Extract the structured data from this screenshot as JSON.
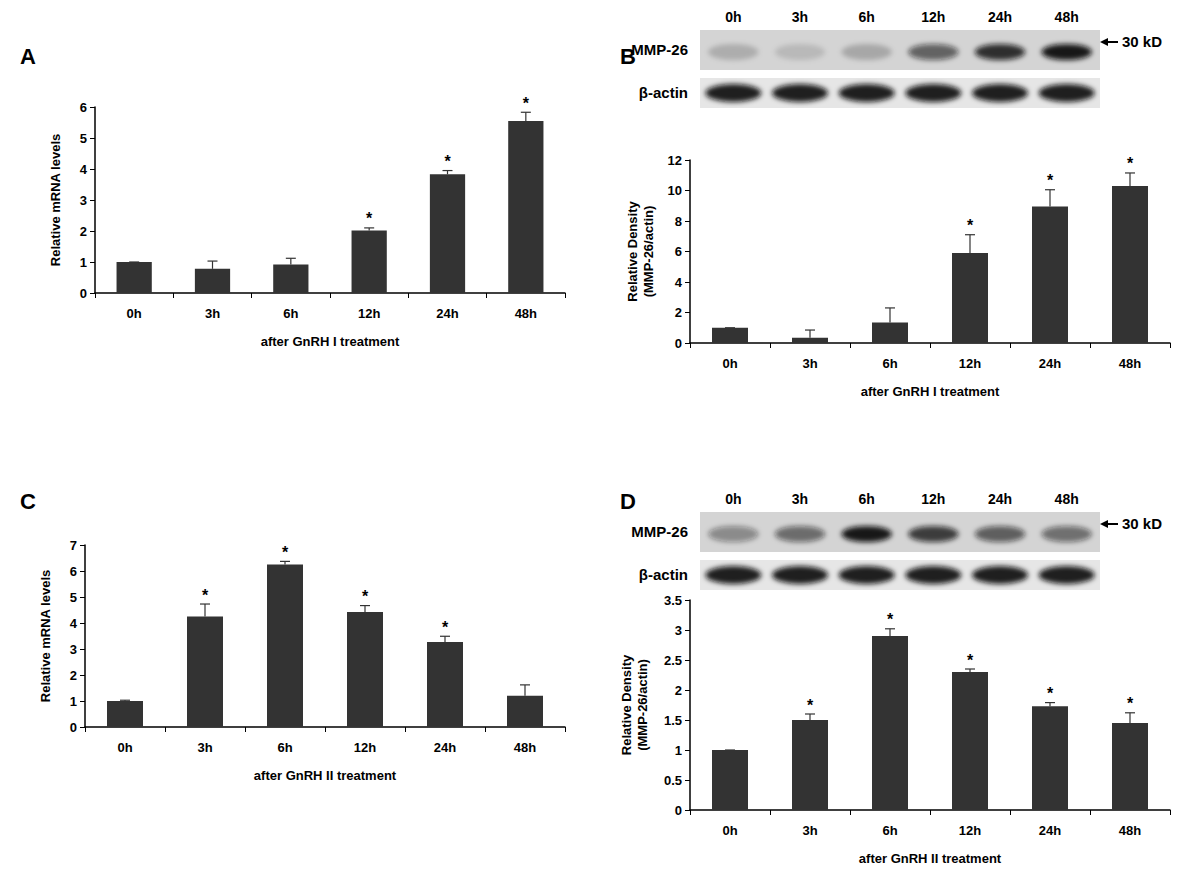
{
  "chart_data": [
    {
      "type": "bar",
      "title": "A",
      "x_label": "after GnRH I treatment",
      "y_label": "Relative mRNA levels",
      "categories": [
        "0h",
        "3h",
        "6h",
        "12h",
        "24h",
        "48h"
      ],
      "values": [
        1,
        0.78,
        0.92,
        2.02,
        3.83,
        5.55
      ],
      "errors": [
        0,
        0.25,
        0.2,
        0.08,
        0.12,
        0.28
      ],
      "annotations": [
        {
          "category": "12h",
          "text": "*"
        },
        {
          "category": "24h",
          "text": "*"
        },
        {
          "category": "48h",
          "text": "*"
        }
      ],
      "color": "#333333",
      "ylim": [
        0,
        6
      ],
      "yticks": [
        0,
        1,
        2,
        3,
        4,
        5,
        6
      ],
      "grid": false
    },
    {
      "type": "bar",
      "title": "B",
      "x_label": "after GnRH I treatment",
      "y_label": "Relative Density\n(MMP-26/actin)",
      "categories": [
        "0h",
        "3h",
        "6h",
        "12h",
        "24h",
        "48h"
      ],
      "values": [
        1,
        0.35,
        1.35,
        5.9,
        8.95,
        10.3
      ],
      "errors": [
        0,
        0.5,
        0.95,
        1.2,
        1.1,
        0.85
      ],
      "annotations": [
        {
          "category": "12h",
          "text": "*"
        },
        {
          "category": "24h",
          "text": "*"
        },
        {
          "category": "48h",
          "text": "*"
        }
      ],
      "color": "#333333",
      "ylim": [
        0,
        12
      ],
      "yticks": [
        0,
        2,
        4,
        6,
        8,
        10,
        12
      ],
      "grid": false,
      "blot": {
        "lanes": [
          "0h",
          "3h",
          "6h",
          "12h",
          "24h",
          "48h"
        ],
        "rows": [
          "MMP-26",
          "β-actin"
        ],
        "size_label": "30 kD"
      }
    },
    {
      "type": "bar",
      "title": "C",
      "x_label": "after GnRH II treatment",
      "y_label": "Relative mRNA levels",
      "categories": [
        "0h",
        "3h",
        "6h",
        "12h",
        "24h",
        "48h"
      ],
      "values": [
        1,
        4.25,
        6.25,
        4.42,
        3.27,
        1.2
      ],
      "errors": [
        0.03,
        0.48,
        0.12,
        0.25,
        0.22,
        0.42
      ],
      "annotations": [
        {
          "category": "3h",
          "text": "*"
        },
        {
          "category": "6h",
          "text": "*"
        },
        {
          "category": "12h",
          "text": "*"
        },
        {
          "category": "24h",
          "text": "*"
        }
      ],
      "color": "#333333",
      "ylim": [
        0,
        7
      ],
      "yticks": [
        0,
        1,
        2,
        3,
        4,
        5,
        6,
        7
      ],
      "grid": false
    },
    {
      "type": "bar",
      "title": "D",
      "x_label": "after GnRH II treatment",
      "y_label": "Relative Density\n(MMP-26/actin)",
      "categories": [
        "0h",
        "3h",
        "6h",
        "12h",
        "24h",
        "48h"
      ],
      "values": [
        1,
        1.5,
        2.9,
        2.3,
        1.73,
        1.45
      ],
      "errors": [
        0,
        0.1,
        0.12,
        0.05,
        0.06,
        0.17
      ],
      "annotations": [
        {
          "category": "3h",
          "text": "*"
        },
        {
          "category": "6h",
          "text": "*"
        },
        {
          "category": "12h",
          "text": "*"
        },
        {
          "category": "24h",
          "text": "*"
        },
        {
          "category": "48h",
          "text": "*"
        }
      ],
      "color": "#333333",
      "ylim": [
        0,
        3.5
      ],
      "yticks": [
        0,
        0.5,
        1,
        1.5,
        2,
        2.5,
        3,
        3.5
      ],
      "grid": false,
      "blot": {
        "lanes": [
          "0h",
          "3h",
          "6h",
          "12h",
          "24h",
          "48h"
        ],
        "rows": [
          "MMP-26",
          "β-actin"
        ],
        "size_label": "30 kD"
      }
    }
  ]
}
